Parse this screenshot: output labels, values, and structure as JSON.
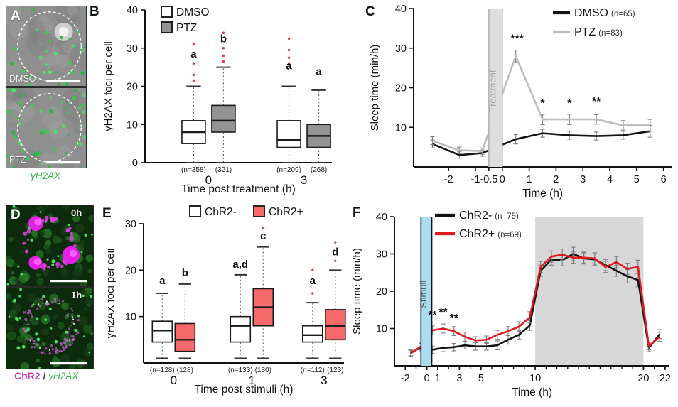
{
  "panels": {
    "a": {
      "letter": "A",
      "images": [
        {
          "label": "DMSO"
        },
        {
          "label": "PTZ"
        }
      ],
      "caption": "γH2AX",
      "signal_color": "#35d14f"
    },
    "b": {
      "letter": "B"
    },
    "c": {
      "letter": "C"
    },
    "d": {
      "letter": "D",
      "images": [
        {
          "time": "0h"
        },
        {
          "time": "1h"
        }
      ],
      "caption": {
        "chr2": "ChR2",
        "sep": " / ",
        "h2ax": "γH2AX"
      },
      "chr2_color": "#cb3fc4",
      "h2ax_color": "#2fb34a"
    },
    "e": {
      "letter": "E"
    },
    "f": {
      "letter": "F"
    }
  },
  "chart_data": [
    {
      "id": "b",
      "type": "boxplot",
      "ylabel": "γH2AX foci per cell",
      "xlabel": "Time post treatment (h)",
      "ylim": [
        0,
        40
      ],
      "yticks": [
        0,
        10,
        20,
        30,
        40
      ],
      "outlier_color": "#e23b3b",
      "legend": [
        {
          "label": "DMSO",
          "fill": "#ffffff"
        },
        {
          "label": "PTZ",
          "fill": "#939393"
        }
      ],
      "groups": [
        {
          "label": "0",
          "boxes": [
            {
              "series": "DMSO",
              "n": "(n=358)",
              "letter": "a",
              "letter_y": 27.5,
              "fill": "#ffffff",
              "whislo": 0,
              "q1": 5,
              "med": 8,
              "q3": 11,
              "whishi": 20,
              "outliers": [
                21.5,
                23,
                26,
                31
              ]
            },
            {
              "series": "PTZ",
              "n": "(321)",
              "letter": "b",
              "letter_y": 31.5,
              "fill": "#939393",
              "whislo": 0,
              "q1": 8,
              "med": 11,
              "q3": 15,
              "whishi": 25,
              "outliers": [
                26.5,
                28,
                30,
                34
              ]
            }
          ]
        },
        {
          "label": "3",
          "boxes": [
            {
              "series": "DMSO",
              "n": "(n=209)",
              "letter": "a",
              "letter_y": 24.5,
              "fill": "#ffffff",
              "whislo": 0,
              "q1": 4,
              "med": 6,
              "q3": 11,
              "whishi": 20,
              "outliers": [
                26,
                27.5,
                29.5,
                32.5
              ]
            },
            {
              "series": "PTZ",
              "n": "(268)",
              "letter": "a",
              "letter_y": 23,
              "fill": "#939393",
              "whislo": 0,
              "q1": 4,
              "med": 7,
              "q3": 10,
              "whishi": 19,
              "outliers": []
            }
          ]
        }
      ]
    },
    {
      "id": "c",
      "type": "line",
      "ylabel": "Sleep time (min/h)",
      "xlabel": "Time (h)",
      "ylim": [
        0,
        40
      ],
      "yticks": [
        10,
        20,
        30,
        40
      ],
      "xlim": [
        -3.3,
        6.3
      ],
      "xticks": [
        -2,
        -1,
        -0.5,
        0,
        1,
        2,
        3,
        4,
        5,
        6
      ],
      "bands": [
        {
          "x0": -0.5,
          "x1": 0,
          "fill": "#dedede",
          "edge": "#b5b5b5",
          "label": "Treatment",
          "label_color": "#9e9e9e",
          "layer": "front"
        }
      ],
      "series": [
        {
          "name": "DMSO",
          "n": "(n=65)",
          "color": "#141414",
          "x": [
            -2.6,
            -1.6,
            -0.75,
            0.5,
            1.5,
            2.5,
            3.5,
            4.5,
            5.5
          ],
          "y": [
            5.8,
            3.0,
            3.5,
            7.0,
            8.5,
            8.0,
            7.8,
            8.0,
            9.0
          ],
          "err": [
            1.0,
            0.8,
            0.8,
            1.2,
            1.0,
            1.0,
            1.0,
            1.0,
            1.5
          ]
        },
        {
          "name": "PTZ",
          "n": "(n=83)",
          "color": "#bcbcbc",
          "x": [
            -2.6,
            -1.6,
            -0.75,
            0.5,
            1.5,
            2.5,
            3.5,
            4.5,
            5.5
          ],
          "y": [
            6.6,
            4.2,
            4.0,
            28.0,
            12.0,
            12.0,
            12.0,
            10.5,
            10.5
          ],
          "err": [
            1.0,
            0.8,
            0.8,
            1.5,
            1.3,
            1.3,
            1.2,
            1.2,
            1.5
          ]
        }
      ],
      "annotations": [
        {
          "x": 0.55,
          "y": 31.5,
          "text": "***"
        },
        {
          "x": 1.5,
          "y": 15.2,
          "text": "*"
        },
        {
          "x": 2.5,
          "y": 15.2,
          "text": "*"
        },
        {
          "x": 3.5,
          "y": 15.6,
          "text": "**"
        }
      ]
    },
    {
      "id": "e",
      "type": "boxplot",
      "ylabel": "γH2AX foci per cell",
      "xlabel": "Time post stimuli (h)",
      "ylim": [
        0,
        30
      ],
      "yticks": [
        10,
        20,
        30
      ],
      "outlier_color": "#e23b3b",
      "legend": [
        {
          "label": "ChR2-",
          "fill": "#ffffff"
        },
        {
          "label": "ChR2+",
          "fill": "#f5696b"
        }
      ],
      "groups": [
        {
          "label": "0",
          "boxes": [
            {
              "series": "ChR2-",
              "n": "(n=128)",
              "letter": "a",
              "letter_y": 17,
              "fill": "#ffffff",
              "whislo": 1,
              "q1": 4.5,
              "med": 7,
              "q3": 9,
              "whishi": 15,
              "outliers": []
            },
            {
              "series": "ChR2+",
              "n": "(128)",
              "letter": "b",
              "letter_y": 18.7,
              "fill": "#f5696b",
              "whislo": 1,
              "q1": 2.5,
              "med": 5,
              "q3": 8.5,
              "whishi": 17,
              "outliers": []
            }
          ]
        },
        {
          "label": "1",
          "boxes": [
            {
              "series": "ChR2-",
              "n": "(n=133)",
              "letter": "a,d",
              "letter_y": 20.5,
              "fill": "#ffffff",
              "whislo": 1,
              "q1": 4.5,
              "med": 8,
              "q3": 10,
              "whishi": 19,
              "outliers": []
            },
            {
              "series": "ChR2+",
              "n": "(180)",
              "letter": "c",
              "letter_y": 26.6,
              "fill": "#f5696b",
              "whislo": 1,
              "q1": 8,
              "med": 12,
              "q3": 16,
              "whishi": 25,
              "outliers": [
                29
              ]
            }
          ]
        },
        {
          "label": "3",
          "boxes": [
            {
              "series": "ChR2-",
              "n": "(n=112)",
              "letter": "a",
              "letter_y": 17,
              "fill": "#ffffff",
              "whislo": 1,
              "q1": 4.5,
              "med": 6,
              "q3": 8,
              "whishi": 13,
              "outliers": [
                15,
                20
              ]
            },
            {
              "series": "ChR2+",
              "n": "(123)",
              "letter": "d",
              "letter_y": 23.2,
              "fill": "#f5696b",
              "whislo": 1,
              "q1": 5,
              "med": 8,
              "q3": 11.5,
              "whishi": 20,
              "outliers": [
                22,
                26
              ]
            }
          ]
        }
      ]
    },
    {
      "id": "f",
      "type": "line",
      "ylabel": "Sleep time (min/h)",
      "xlabel": "Time (h)",
      "ylim": [
        0,
        40
      ],
      "yticks": [
        10,
        20,
        30,
        40
      ],
      "xlim": [
        -3,
        22.4
      ],
      "xticks": [
        -2,
        0,
        1,
        3,
        5,
        10,
        20,
        22
      ],
      "xminor": {
        "from": -2,
        "to": 22,
        "step": 1
      },
      "bands": [
        {
          "x0": 10,
          "x1": 20,
          "fill": "#d7d7d7",
          "layer": "back"
        },
        {
          "x0": -0.55,
          "x1": 0.45,
          "fill": "#a9dcf2",
          "edge": "#111111",
          "label": "Stimuli",
          "label_color": "#4a4a4a",
          "layer": "front"
        }
      ],
      "series": [
        {
          "name": "ChR2-",
          "n": "(n=75)",
          "color": "#111111",
          "x": [
            -1.5,
            -0.5,
            0.5,
            1.5,
            2.5,
            3.5,
            4.5,
            5.5,
            6.5,
            7.5,
            8.5,
            9.5,
            10.5,
            11.5,
            12.5,
            13.5,
            14.5,
            15.5,
            16.5,
            17.5,
            18.5,
            19.5,
            20.5,
            21.5
          ],
          "y": [
            3.5,
            5.0,
            4.3,
            4.8,
            5.0,
            5.5,
            5.2,
            5.2,
            5.5,
            7.0,
            8.3,
            10.8,
            25.5,
            28.5,
            28.3,
            30.0,
            28.8,
            28.5,
            27.0,
            25.5,
            24.0,
            23.0,
            4.8,
            8.5
          ],
          "err": [
            0.8,
            1.0,
            1.0,
            1.0,
            1.0,
            1.0,
            1.0,
            1.0,
            1.2,
            1.2,
            1.2,
            1.3,
            1.5,
            1.5,
            1.5,
            1.8,
            1.5,
            1.5,
            1.5,
            1.5,
            1.8,
            1.8,
            1.0,
            1.2
          ]
        },
        {
          "name": "ChR2+",
          "n": "(n=69)",
          "color": "#e01b1e",
          "x": [
            -1.5,
            -0.5,
            0.5,
            1.5,
            2.5,
            3.5,
            4.5,
            5.5,
            6.5,
            7.5,
            8.5,
            9.5,
            10.5,
            11.5,
            12.5,
            13.5,
            14.5,
            15.5,
            16.5,
            17.5,
            18.5,
            19.5,
            20.5,
            21.5
          ],
          "y": [
            3.3,
            5.3,
            9.5,
            10.0,
            9.3,
            7.8,
            6.8,
            7.0,
            8.3,
            9.3,
            10.5,
            13.0,
            26.5,
            29.3,
            29.8,
            29.0,
            29.0,
            28.8,
            26.5,
            27.8,
            26.0,
            26.5,
            5.3,
            7.8
          ],
          "err": [
            0.8,
            1.0,
            1.2,
            1.2,
            1.2,
            1.2,
            1.0,
            1.0,
            1.2,
            1.2,
            1.3,
            1.5,
            1.5,
            1.5,
            1.5,
            1.5,
            1.5,
            1.5,
            1.5,
            1.5,
            1.5,
            1.8,
            1.0,
            1.2
          ]
        }
      ],
      "annotations": [
        {
          "x": 0.5,
          "y": 12.6,
          "text": "**"
        },
        {
          "x": 1.5,
          "y": 13.4,
          "text": "**"
        },
        {
          "x": 2.5,
          "y": 11.8,
          "text": "**"
        }
      ]
    }
  ]
}
